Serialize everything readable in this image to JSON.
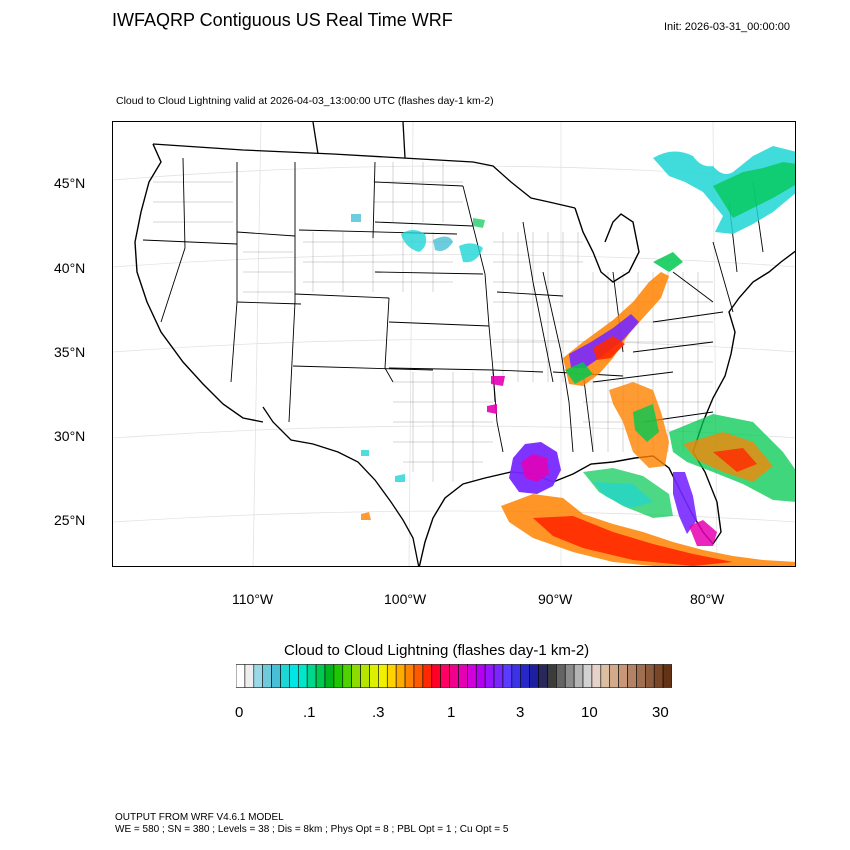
{
  "title": "IWFAQRP Contiguous US Real Time WRF",
  "init": "Init: 2026-03-31_00:00:00",
  "subtitle": "Cloud to Cloud Lightning valid at 2026-04-03_13:00:00 UTC   (flashes day-1 km-2)",
  "lat_labels": [
    "45°N",
    "40°N",
    "35°N",
    "30°N",
    "25°N"
  ],
  "lon_labels": [
    "110°W",
    "100°W",
    "90°W",
    "80°W"
  ],
  "colorbar": {
    "title": "Cloud to Cloud Lightning  (flashes day-1 km-2)",
    "tick_labels": [
      "0",
      ".1",
      ".3",
      "1",
      "3",
      "10",
      "30"
    ],
    "colors": [
      "#ffffff",
      "#eeeeee",
      "#9ad8e8",
      "#6fcbdc",
      "#48bfd6",
      "#1fd6d6",
      "#00e6e6",
      "#00e6c8",
      "#00d68c",
      "#00c850",
      "#00b41e",
      "#1ec800",
      "#50d200",
      "#8cdc00",
      "#b4e600",
      "#dcf000",
      "#f0f000",
      "#ffd200",
      "#ffaa00",
      "#ff8200",
      "#ff5a00",
      "#ff2800",
      "#ff0028",
      "#ff0064",
      "#f0008c",
      "#e600b4",
      "#d200dc",
      "#b400f0",
      "#9614ff",
      "#7828ff",
      "#5a3cff",
      "#3c32e6",
      "#2828c8",
      "#1e1ea0",
      "#28285a",
      "#3c3c3c",
      "#646464",
      "#8c8c8c",
      "#b4b4b4",
      "#d2d2d2",
      "#e6d2c8",
      "#dcbea0",
      "#d2aa8c",
      "#c89678",
      "#b48264",
      "#a06e50",
      "#8c5a3c",
      "#784628",
      "#643214"
    ]
  },
  "footer": {
    "line1": "OUTPUT FROM WRF V4.6.1 MODEL",
    "line2": "WE = 580 ; SN = 380 ; Levels = 38 ; Dis = 8km ; Phys Opt = 8 ; PBL Opt = 1 ; Cu Opt = 5"
  },
  "colors": {
    "lightning_teal": "#1fd6d6",
    "lightning_green": "#00c850",
    "lightning_orange": "#ff8200",
    "lightning_red": "#ff2800",
    "lightning_purple": "#7828ff",
    "lightning_magenta": "#e600b4"
  }
}
